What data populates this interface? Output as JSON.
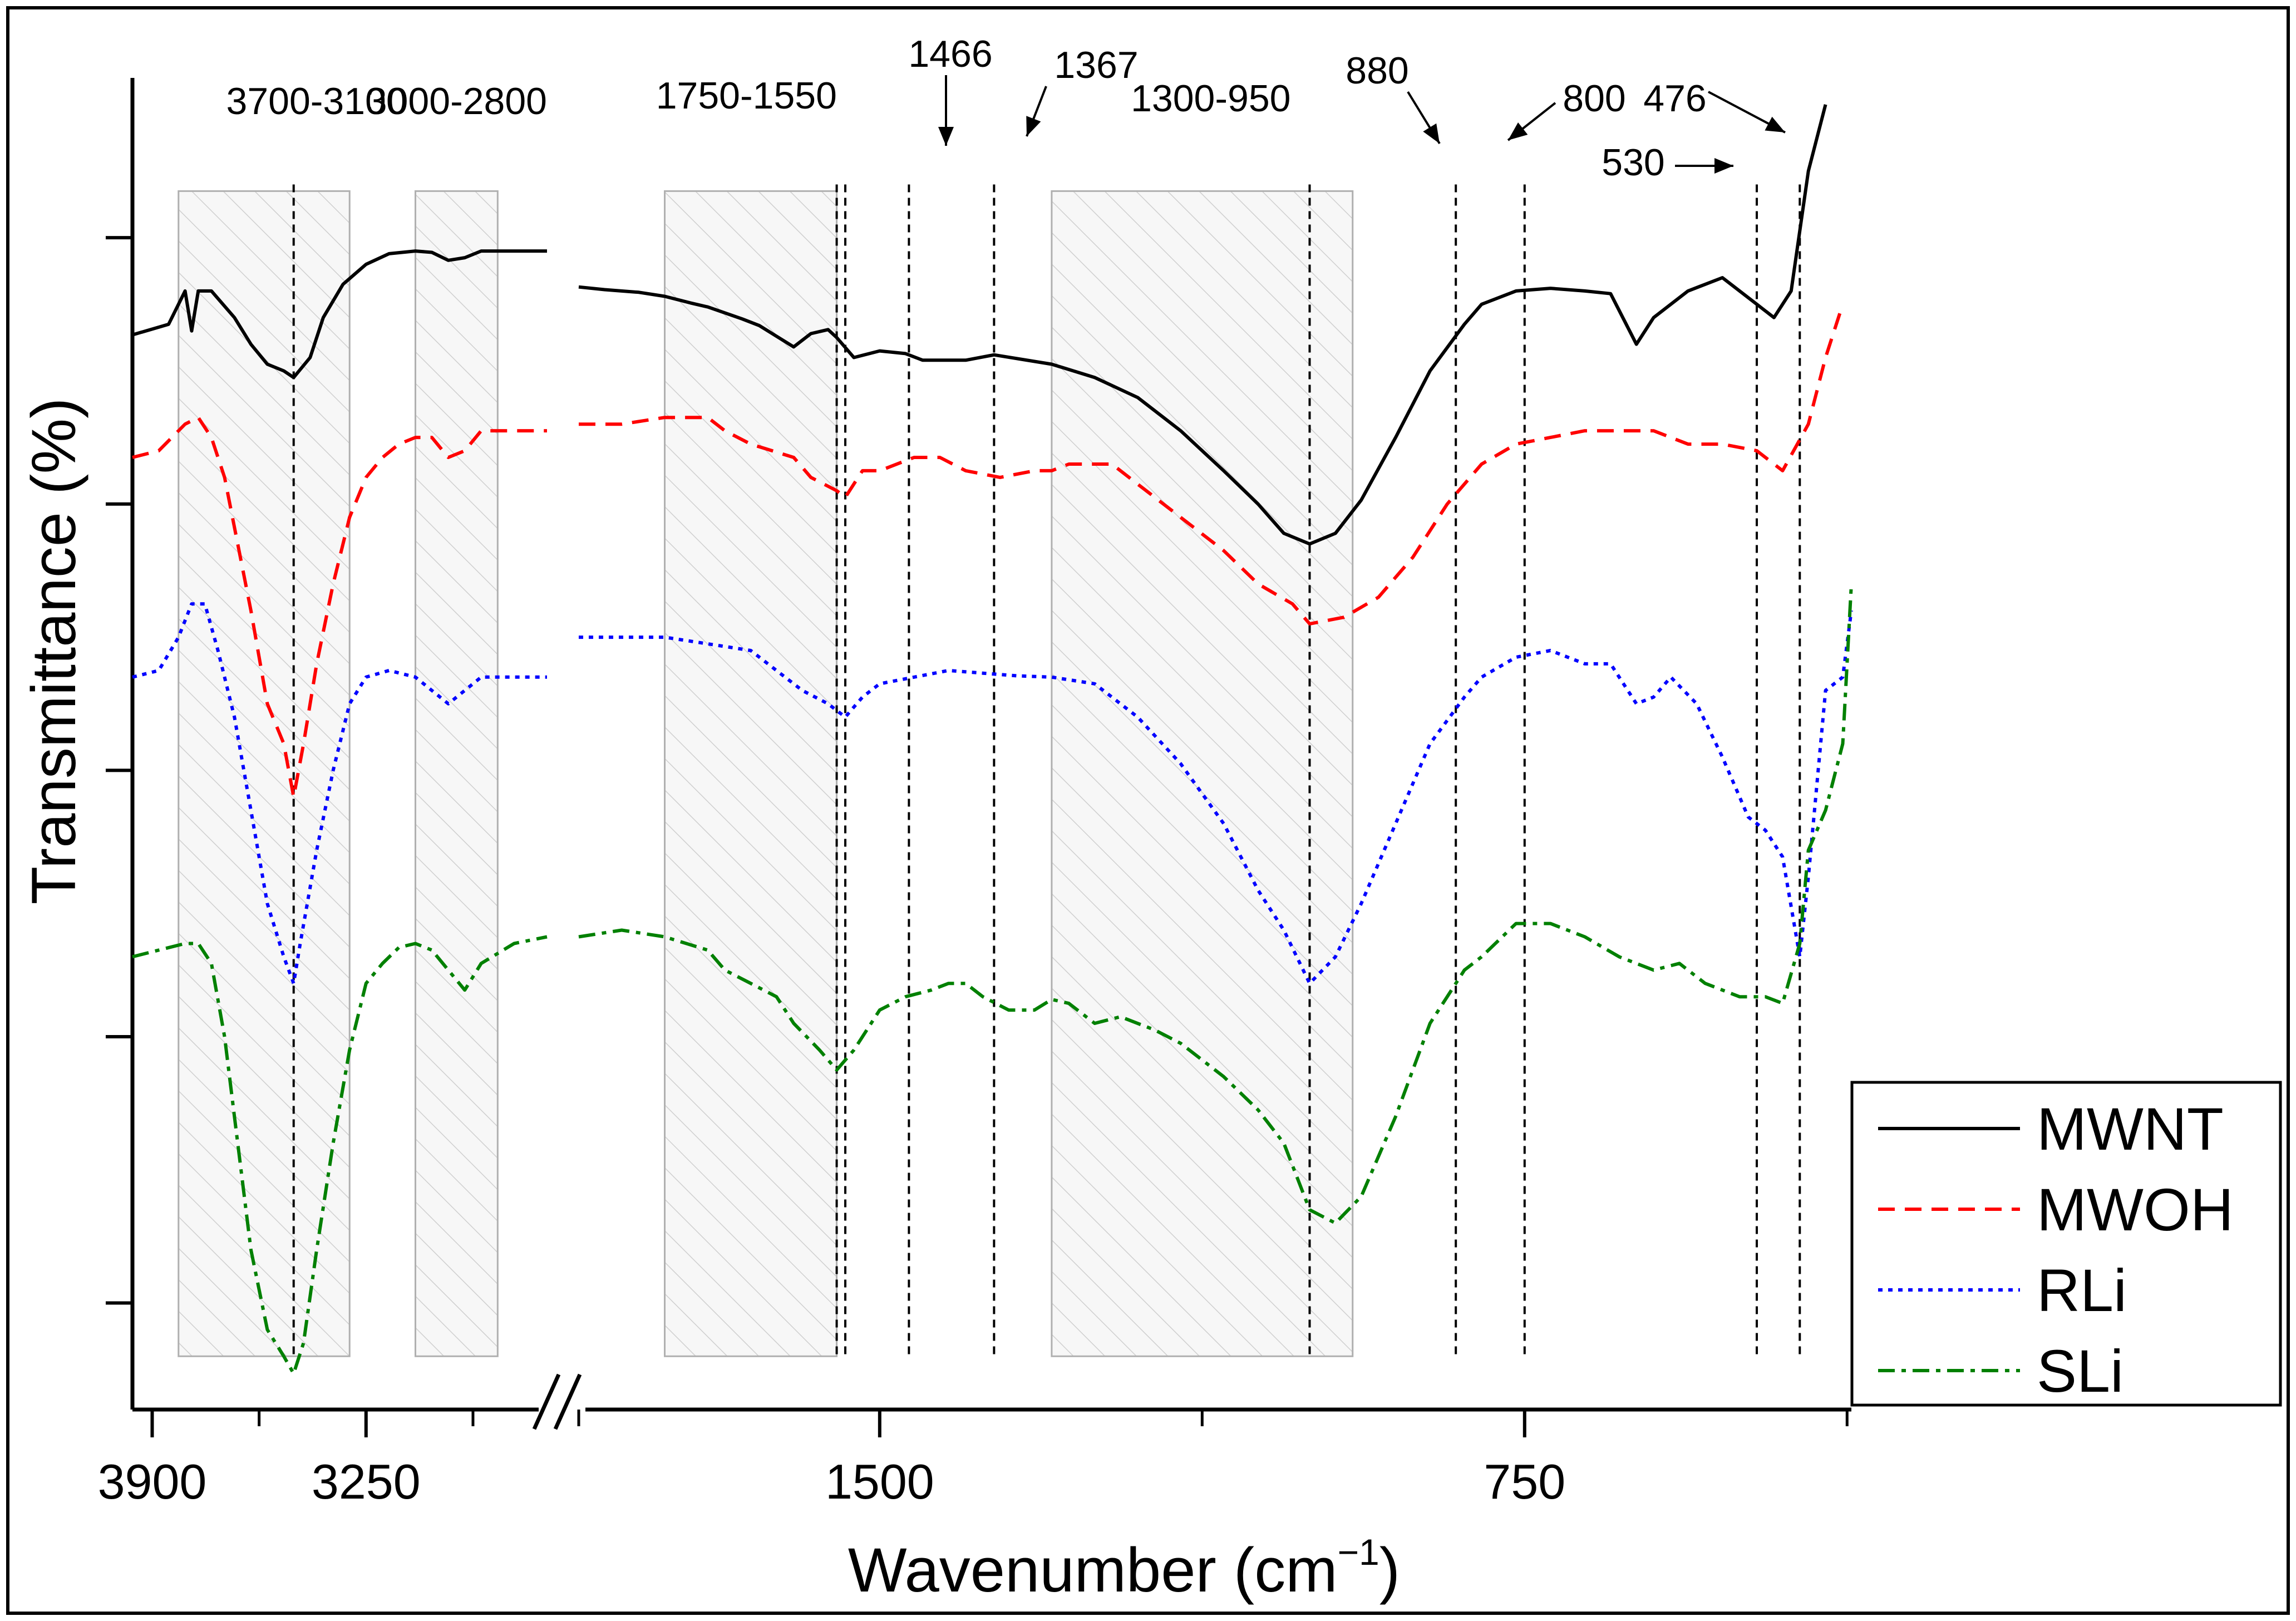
{
  "chart_data": {
    "type": "line",
    "title": "",
    "xlabel": "Wavenumber (cm",
    "xlabel_sup": "−1",
    "xlabel_close": ")",
    "ylabel": "Transmittance (%)",
    "x_reversed": true,
    "x_break": [
      2700,
      1850
    ],
    "xlim": [
      3960,
      370
    ],
    "x_ticks": [
      {
        "value": 3900,
        "label": "3900"
      },
      {
        "value": 3250,
        "label": "3250"
      },
      {
        "value": 1500,
        "label": "1500"
      },
      {
        "value": 750,
        "label": "750"
      }
    ],
    "x_minor_ticks": [
      3575,
      2925,
      1850,
      1125,
      375
    ],
    "ylim": [
      0,
      100
    ],
    "y_ticks_positions": [
      8,
      28,
      48,
      68,
      88
    ],
    "y_tick_labels_shown": false,
    "legend_position": "bottom-right",
    "colors": {
      "MWNT": "#000000",
      "MWOH": "#ff0000",
      "RLi": "#0000ff",
      "SLi": "#008000",
      "band_fill": "#f2f2f2",
      "band_stroke": "#b0b0b0"
    },
    "series": [
      {
        "name": "MWNT",
        "dash": "solid",
        "points": [
          [
            3960,
            80.7
          ],
          [
            3850,
            81.5
          ],
          [
            3800,
            84
          ],
          [
            3780,
            81
          ],
          [
            3760,
            84
          ],
          [
            3720,
            84
          ],
          [
            3650,
            82
          ],
          [
            3600,
            80
          ],
          [
            3550,
            78.5
          ],
          [
            3500,
            78
          ],
          [
            3470,
            77.5
          ],
          [
            3420,
            79
          ],
          [
            3380,
            82
          ],
          [
            3320,
            84.5
          ],
          [
            3250,
            86
          ],
          [
            3180,
            86.8
          ],
          [
            3100,
            87
          ],
          [
            3050,
            86.9
          ],
          [
            3000,
            86.3
          ],
          [
            2950,
            86.5
          ],
          [
            2900,
            87
          ],
          [
            2800,
            87
          ],
          [
            2700,
            87
          ],
          [
            1850,
            84.3
          ],
          [
            1820,
            84.1
          ],
          [
            1780,
            83.9
          ],
          [
            1750,
            83.6
          ],
          [
            1720,
            83.1
          ],
          [
            1700,
            82.8
          ],
          [
            1660,
            81.9
          ],
          [
            1640,
            81.4
          ],
          [
            1600,
            79.8
          ],
          [
            1580,
            80.8
          ],
          [
            1560,
            81.1
          ],
          [
            1550,
            80.5
          ],
          [
            1530,
            79
          ],
          [
            1500,
            79.5
          ],
          [
            1470,
            79.3
          ],
          [
            1450,
            78.8
          ],
          [
            1400,
            78.8
          ],
          [
            1367,
            79.2
          ],
          [
            1300,
            78.5
          ],
          [
            1250,
            77.5
          ],
          [
            1200,
            76
          ],
          [
            1150,
            73.5
          ],
          [
            1100,
            70.5
          ],
          [
            1060,
            68
          ],
          [
            1030,
            65.8
          ],
          [
            1000,
            65
          ],
          [
            970,
            65.8
          ],
          [
            940,
            68.3
          ],
          [
            900,
            73
          ],
          [
            860,
            78
          ],
          [
            820,
            81.5
          ],
          [
            800,
            83
          ],
          [
            760,
            84
          ],
          [
            720,
            84.2
          ],
          [
            680,
            84
          ],
          [
            650,
            83.8
          ],
          [
            620,
            80
          ],
          [
            600,
            82
          ],
          [
            560,
            84
          ],
          [
            520,
            85
          ],
          [
            500,
            84
          ],
          [
            480,
            83
          ],
          [
            460,
            82
          ],
          [
            440,
            84
          ],
          [
            420,
            93
          ],
          [
            400,
            98
          ]
        ]
      },
      {
        "name": "MWOH",
        "dash": "dashed",
        "points": [
          [
            3960,
            71.5
          ],
          [
            3880,
            72
          ],
          [
            3800,
            74
          ],
          [
            3760,
            74.5
          ],
          [
            3720,
            73
          ],
          [
            3680,
            70
          ],
          [
            3640,
            65
          ],
          [
            3600,
            60
          ],
          [
            3550,
            53
          ],
          [
            3500,
            50
          ],
          [
            3470,
            46
          ],
          [
            3440,
            50
          ],
          [
            3400,
            56
          ],
          [
            3350,
            62
          ],
          [
            3300,
            67
          ],
          [
            3250,
            70
          ],
          [
            3200,
            71.5
          ],
          [
            3150,
            72.5
          ],
          [
            3100,
            73
          ],
          [
            3050,
            73
          ],
          [
            3000,
            71.5
          ],
          [
            2950,
            72
          ],
          [
            2900,
            73.5
          ],
          [
            2800,
            73.5
          ],
          [
            2700,
            73.5
          ],
          [
            1850,
            74
          ],
          [
            1800,
            74
          ],
          [
            1750,
            74.5
          ],
          [
            1700,
            74.5
          ],
          [
            1680,
            73.5
          ],
          [
            1650,
            72.5
          ],
          [
            1600,
            71.5
          ],
          [
            1580,
            70
          ],
          [
            1550,
            69
          ],
          [
            1540,
            68.5
          ],
          [
            1520,
            70.5
          ],
          [
            1500,
            70.5
          ],
          [
            1460,
            71.5
          ],
          [
            1430,
            71.5
          ],
          [
            1400,
            70.5
          ],
          [
            1360,
            70
          ],
          [
            1320,
            70.5
          ],
          [
            1300,
            70.5
          ],
          [
            1280,
            71
          ],
          [
            1250,
            71
          ],
          [
            1230,
            71
          ],
          [
            1200,
            69.5
          ],
          [
            1150,
            67
          ],
          [
            1100,
            64.5
          ],
          [
            1060,
            62
          ],
          [
            1020,
            60.5
          ],
          [
            1000,
            59
          ],
          [
            960,
            59.5
          ],
          [
            920,
            61
          ],
          [
            880,
            64
          ],
          [
            840,
            68
          ],
          [
            800,
            71
          ],
          [
            760,
            72.5
          ],
          [
            720,
            73
          ],
          [
            680,
            73.5
          ],
          [
            640,
            73.5
          ],
          [
            600,
            73.5
          ],
          [
            560,
            72.5
          ],
          [
            520,
            72.5
          ],
          [
            480,
            72
          ],
          [
            450,
            70.5
          ],
          [
            420,
            74
          ],
          [
            400,
            79
          ],
          [
            380,
            83
          ]
        ]
      },
      {
        "name": "RLi",
        "dash": "dotted",
        "points": [
          [
            3960,
            55
          ],
          [
            3880,
            55.5
          ],
          [
            3820,
            58
          ],
          [
            3780,
            60.5
          ],
          [
            3740,
            60.5
          ],
          [
            3700,
            57
          ],
          [
            3650,
            52
          ],
          [
            3600,
            45
          ],
          [
            3550,
            38
          ],
          [
            3500,
            34
          ],
          [
            3470,
            32
          ],
          [
            3450,
            35
          ],
          [
            3400,
            42
          ],
          [
            3350,
            48
          ],
          [
            3300,
            53
          ],
          [
            3250,
            55
          ],
          [
            3180,
            55.5
          ],
          [
            3100,
            55
          ],
          [
            3050,
            54
          ],
          [
            3000,
            53
          ],
          [
            2950,
            54
          ],
          [
            2900,
            55
          ],
          [
            2800,
            55
          ],
          [
            2700,
            55
          ],
          [
            1850,
            58
          ],
          [
            1750,
            58
          ],
          [
            1700,
            57.5
          ],
          [
            1650,
            57
          ],
          [
            1620,
            55.5
          ],
          [
            1590,
            54
          ],
          [
            1560,
            53
          ],
          [
            1540,
            52
          ],
          [
            1520,
            53.5
          ],
          [
            1500,
            54.5
          ],
          [
            1460,
            55
          ],
          [
            1420,
            55.5
          ],
          [
            1380,
            55.3
          ],
          [
            1340,
            55.1
          ],
          [
            1300,
            55
          ],
          [
            1250,
            54.5
          ],
          [
            1200,
            52
          ],
          [
            1150,
            48.5
          ],
          [
            1100,
            44
          ],
          [
            1060,
            39
          ],
          [
            1030,
            36
          ],
          [
            1000,
            32
          ],
          [
            970,
            34
          ],
          [
            940,
            38
          ],
          [
            900,
            44
          ],
          [
            860,
            50
          ],
          [
            820,
            53.5
          ],
          [
            800,
            55
          ],
          [
            760,
            56.5
          ],
          [
            720,
            57
          ],
          [
            680,
            56
          ],
          [
            650,
            56
          ],
          [
            620,
            53
          ],
          [
            600,
            53.5
          ],
          [
            580,
            55
          ],
          [
            550,
            53
          ],
          [
            520,
            49
          ],
          [
            490,
            44.5
          ],
          [
            470,
            43.5
          ],
          [
            450,
            41.5
          ],
          [
            430,
            34
          ],
          [
            420,
            40
          ],
          [
            400,
            54
          ],
          [
            380,
            55
          ],
          [
            370,
            60
          ]
        ]
      },
      {
        "name": "SLi",
        "dash": "dashdot",
        "points": [
          [
            3960,
            34
          ],
          [
            3880,
            34.5
          ],
          [
            3800,
            35
          ],
          [
            3760,
            35
          ],
          [
            3720,
            33.5
          ],
          [
            3680,
            28
          ],
          [
            3640,
            20
          ],
          [
            3600,
            12
          ],
          [
            3550,
            6
          ],
          [
            3500,
            4
          ],
          [
            3470,
            2.7
          ],
          [
            3440,
            5
          ],
          [
            3400,
            12
          ],
          [
            3350,
            20
          ],
          [
            3300,
            27
          ],
          [
            3250,
            32
          ],
          [
            3200,
            33.5
          ],
          [
            3150,
            34.7
          ],
          [
            3100,
            35
          ],
          [
            3050,
            34.5
          ],
          [
            3000,
            33
          ],
          [
            2950,
            31.5
          ],
          [
            2900,
            33.5
          ],
          [
            2800,
            35
          ],
          [
            2700,
            35.5
          ],
          [
            1850,
            35.5
          ],
          [
            1800,
            36
          ],
          [
            1750,
            35.5
          ],
          [
            1700,
            34.5
          ],
          [
            1680,
            33
          ],
          [
            1650,
            32
          ],
          [
            1620,
            31
          ],
          [
            1600,
            29
          ],
          [
            1570,
            27
          ],
          [
            1550,
            25.5
          ],
          [
            1530,
            27
          ],
          [
            1500,
            30
          ],
          [
            1470,
            31
          ],
          [
            1440,
            31.5
          ],
          [
            1420,
            32
          ],
          [
            1400,
            32
          ],
          [
            1380,
            31
          ],
          [
            1350,
            30
          ],
          [
            1320,
            30
          ],
          [
            1300,
            30.8
          ],
          [
            1280,
            30.5
          ],
          [
            1250,
            29
          ],
          [
            1220,
            29.5
          ],
          [
            1180,
            28.5
          ],
          [
            1150,
            27.5
          ],
          [
            1100,
            25
          ],
          [
            1060,
            22.5
          ],
          [
            1030,
            20
          ],
          [
            1000,
            15
          ],
          [
            970,
            14
          ],
          [
            940,
            16
          ],
          [
            900,
            22
          ],
          [
            860,
            29
          ],
          [
            820,
            33
          ],
          [
            800,
            34
          ],
          [
            760,
            36.5
          ],
          [
            720,
            36.5
          ],
          [
            680,
            35.5
          ],
          [
            640,
            34
          ],
          [
            600,
            33
          ],
          [
            570,
            33.5
          ],
          [
            540,
            32
          ],
          [
            500,
            31
          ],
          [
            470,
            31
          ],
          [
            450,
            30.5
          ],
          [
            430,
            35
          ],
          [
            420,
            42
          ],
          [
            400,
            45
          ],
          [
            380,
            50
          ],
          [
            370,
            62
          ]
        ]
      }
    ],
    "shaded_bands": [
      [
        3820,
        3300
      ],
      [
        3100,
        2850
      ],
      [
        1750,
        1550
      ],
      [
        1300,
        950
      ]
    ],
    "vlines": [
      3470,
      1550,
      1540,
      1466,
      1367,
      1000,
      830,
      750,
      480,
      430
    ],
    "annotations": [
      {
        "text": "3700-3100",
        "x": 3400
      },
      {
        "text": "3000-2800",
        "x": 2975
      },
      {
        "text": "1750-1550",
        "x": 1655
      },
      {
        "text": "1466",
        "x": 1480
      },
      {
        "text": "1367",
        "x": 1300
      },
      {
        "text": "1300-950",
        "x": 1115
      },
      {
        "text": "880",
        "x": 895
      },
      {
        "text": "800",
        "x": 655
      },
      {
        "text": "476",
        "x": 560
      },
      {
        "text": "530",
        "x": 630
      }
    ]
  }
}
